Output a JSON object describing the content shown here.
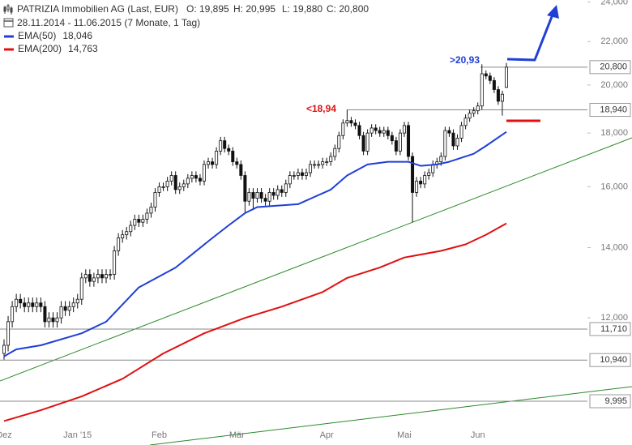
{
  "header": {
    "title": "PATRIZIA Immobilien AG (Last, EUR)",
    "open": "O: 19,895",
    "high": "H: 20,995",
    "low": "L: 19,880",
    "close": "C: 20,800",
    "period": "28.11.2014 - 11.06.2015 (7 Monate, 1 Tag)"
  },
  "chart_data": {
    "type": "candlestick",
    "log": true,
    "categories": [
      "Dez",
      null,
      null,
      null,
      null,
      null,
      null,
      null,
      null,
      null,
      null,
      null,
      null,
      null,
      null,
      null,
      null,
      null,
      "Jan '15",
      null,
      null,
      null,
      null,
      null,
      null,
      null,
      null,
      null,
      null,
      null,
      null,
      null,
      null,
      null,
      null,
      null,
      null,
      null,
      "Feb",
      null,
      null,
      null,
      null,
      null,
      null,
      null,
      null,
      null,
      null,
      null,
      null,
      null,
      null,
      null,
      null,
      null,
      null,
      "Mär",
      null,
      null,
      null,
      null,
      null,
      null,
      null,
      null,
      null,
      null,
      null,
      null,
      null,
      null,
      null,
      null,
      null,
      null,
      null,
      null,
      null,
      "Apr",
      null,
      null,
      null,
      null,
      null,
      null,
      null,
      null,
      null,
      null,
      null,
      null,
      null,
      null,
      null,
      null,
      null,
      null,
      "Mai",
      null,
      null,
      null,
      null,
      null,
      null,
      null,
      null,
      null,
      null,
      null,
      null,
      null,
      null,
      null,
      null,
      null,
      "Jun",
      null,
      null,
      null,
      null,
      null,
      null,
      null
    ],
    "open": [
      11.1,
      11.3,
      11.9,
      12.3,
      12.5,
      12.4,
      12.3,
      12.4,
      12.3,
      12.4,
      12.3,
      11.9,
      12.0,
      11.9,
      12.0,
      12.3,
      12.2,
      12.3,
      12.4,
      12.5,
      13.1,
      13.2,
      13.0,
      13.1,
      13.2,
      13.1,
      13.2,
      13.2,
      13.9,
      14.3,
      14.4,
      14.5,
      14.7,
      14.9,
      14.8,
      14.9,
      15.1,
      15.3,
      15.8,
      16.0,
      16.0,
      16.2,
      16.4,
      15.9,
      16.0,
      16.1,
      16.3,
      16.4,
      16.3,
      16.2,
      16.8,
      16.9,
      16.8,
      17.3,
      17.7,
      17.4,
      17.3,
      16.9,
      16.8,
      16.4,
      15.5,
      15.8,
      15.6,
      15.8,
      15.6,
      15.5,
      15.8,
      15.7,
      15.9,
      15.8,
      16.1,
      16.4,
      16.4,
      16.5,
      16.4,
      16.5,
      16.8,
      16.8,
      16.8,
      16.9,
      16.9,
      17.1,
      17.4,
      17.9,
      18.4,
      18.5,
      18.4,
      18.3,
      17.9,
      17.3,
      18.0,
      18.2,
      18.1,
      18.0,
      18.1,
      17.9,
      17.7,
      17.3,
      18.0,
      18.3,
      17.1,
      15.8,
      16.2,
      16.1,
      16.4,
      16.5,
      16.8,
      16.9,
      17.1,
      18.1,
      18.0,
      17.5,
      17.8,
      18.3,
      18.6,
      18.8,
      18.9,
      19.1,
      20.5,
      20.4,
      20.2,
      19.8,
      19.3,
      19.895
    ],
    "high": [
      11.45,
      12.05,
      12.45,
      12.65,
      12.65,
      12.55,
      12.55,
      12.55,
      12.55,
      12.55,
      12.45,
      12.15,
      12.15,
      12.15,
      12.45,
      12.45,
      12.45,
      12.55,
      12.65,
      13.25,
      13.35,
      13.35,
      13.25,
      13.35,
      13.35,
      13.35,
      13.35,
      14.05,
      14.45,
      14.55,
      14.65,
      14.85,
      15.05,
      15.05,
      15.05,
      15.25,
      15.45,
      15.95,
      16.15,
      16.15,
      16.35,
      16.55,
      16.55,
      16.15,
      16.25,
      16.45,
      16.55,
      16.55,
      16.45,
      16.95,
      17.05,
      17.05,
      17.45,
      17.85,
      17.85,
      17.55,
      17.45,
      17.05,
      16.95,
      16.55,
      15.95,
      15.95,
      15.95,
      15.95,
      15.75,
      15.95,
      15.95,
      16.05,
      16.05,
      16.25,
      16.55,
      16.55,
      16.65,
      16.65,
      16.65,
      16.95,
      16.95,
      16.95,
      17.05,
      17.05,
      17.25,
      17.55,
      18.05,
      18.55,
      18.94,
      18.65,
      18.55,
      18.45,
      18.05,
      18.15,
      18.35,
      18.35,
      18.25,
      18.25,
      18.25,
      18.05,
      17.85,
      18.15,
      18.45,
      18.45,
      17.25,
      16.35,
      16.35,
      16.55,
      16.65,
      16.95,
      17.05,
      17.25,
      18.25,
      18.25,
      18.15,
      17.95,
      18.45,
      18.75,
      18.95,
      19.05,
      19.25,
      20.93,
      20.65,
      20.55,
      20.35,
      19.95,
      19.75,
      20.995
    ],
    "low": [
      10.95,
      11.15,
      11.75,
      12.15,
      12.25,
      12.15,
      12.15,
      12.15,
      12.15,
      12.15,
      11.75,
      11.75,
      11.75,
      11.75,
      11.85,
      12.05,
      12.05,
      12.15,
      12.25,
      12.35,
      12.95,
      12.85,
      12.85,
      12.95,
      12.95,
      12.95,
      13.05,
      13.05,
      13.75,
      14.15,
      14.25,
      14.35,
      14.55,
      14.65,
      14.65,
      14.75,
      14.95,
      15.15,
      15.65,
      15.85,
      15.85,
      16.05,
      15.75,
      15.75,
      15.85,
      15.95,
      16.15,
      16.15,
      16.05,
      16.05,
      16.65,
      16.65,
      16.65,
      17.15,
      17.25,
      17.15,
      16.75,
      16.65,
      16.25,
      15.1,
      15.35,
      15.2,
      15.45,
      15.45,
      15.35,
      15.35,
      15.55,
      15.55,
      15.65,
      15.65,
      15.95,
      16.25,
      16.25,
      16.25,
      16.25,
      16.35,
      16.65,
      16.65,
      16.65,
      16.75,
      16.75,
      16.95,
      17.25,
      17.75,
      18.25,
      18.25,
      18.15,
      17.75,
      17.15,
      17.15,
      17.85,
      17.95,
      17.85,
      17.85,
      17.75,
      17.55,
      17.15,
      17.15,
      17.85,
      16.95,
      14.8,
      15.65,
      15.95,
      15.95,
      16.25,
      16.35,
      16.65,
      16.75,
      16.95,
      17.85,
      17.35,
      17.35,
      17.65,
      18.15,
      18.45,
      18.65,
      18.75,
      18.95,
      20.25,
      20.05,
      19.65,
      19.15,
      18.7,
      19.88
    ],
    "close": [
      11.3,
      11.9,
      12.3,
      12.5,
      12.4,
      12.3,
      12.4,
      12.3,
      12.4,
      12.3,
      11.9,
      12.0,
      11.9,
      12.0,
      12.3,
      12.2,
      12.3,
      12.4,
      12.5,
      13.1,
      13.2,
      13.0,
      13.1,
      13.2,
      13.1,
      13.2,
      13.2,
      13.9,
      14.3,
      14.4,
      14.5,
      14.7,
      14.9,
      14.8,
      14.9,
      15.1,
      15.3,
      15.8,
      16.0,
      16.0,
      16.2,
      16.4,
      15.9,
      16.0,
      16.1,
      16.3,
      16.4,
      16.3,
      16.2,
      16.8,
      16.9,
      16.8,
      17.3,
      17.7,
      17.4,
      17.3,
      16.9,
      16.8,
      16.4,
      15.5,
      15.8,
      15.6,
      15.8,
      15.6,
      15.5,
      15.8,
      15.7,
      15.9,
      15.8,
      16.1,
      16.4,
      16.4,
      16.5,
      16.4,
      16.5,
      16.8,
      16.8,
      16.8,
      16.9,
      16.9,
      17.1,
      17.4,
      17.9,
      18.4,
      18.5,
      18.4,
      18.3,
      17.9,
      17.3,
      18.0,
      18.2,
      18.1,
      18.0,
      18.1,
      17.9,
      17.7,
      17.3,
      18.0,
      18.3,
      17.1,
      15.8,
      16.2,
      16.1,
      16.4,
      16.5,
      16.8,
      16.9,
      17.1,
      18.1,
      18.0,
      17.5,
      17.8,
      18.3,
      18.6,
      18.8,
      18.9,
      19.1,
      20.5,
      20.4,
      20.2,
      19.8,
      19.3,
      19.6,
      20.8
    ],
    "candle_color": "#111111",
    "series": [
      {
        "name": "EMA(50)",
        "color": "#1f3fd6",
        "last_label": "18,046",
        "x": [
          0,
          3,
          9,
          19,
          25,
          33,
          42,
          51,
          55,
          59,
          62,
          72,
          80,
          84,
          89,
          94,
          99,
          102,
          106,
          109,
          115,
          118,
          123
        ],
        "values": [
          11.03,
          11.2,
          11.3,
          11.6,
          11.9,
          12.83,
          13.4,
          14.3,
          14.7,
          15.1,
          15.3,
          15.4,
          15.9,
          16.4,
          16.8,
          16.9,
          16.9,
          16.75,
          16.8,
          16.9,
          17.2,
          17.5,
          18.046
        ]
      },
      {
        "name": "EMA(200)",
        "color": "#e01010",
        "last_label": "14,763",
        "x": [
          0,
          9,
          19,
          29,
          39,
          49,
          59,
          68,
          78,
          84,
          92,
          98,
          107,
          113,
          118,
          123
        ],
        "values": [
          9.57,
          9.8,
          10.1,
          10.5,
          11.1,
          11.6,
          12.0,
          12.3,
          12.7,
          13.1,
          13.4,
          13.7,
          13.9,
          14.1,
          14.4,
          14.763
        ]
      }
    ],
    "levels": [
      {
        "value": 20.8,
        "label": "20,800"
      },
      {
        "value": 18.94,
        "label": "18,940"
      },
      {
        "value": 11.71,
        "label": "11,710"
      },
      {
        "value": 10.94,
        "label": "10,940"
      },
      {
        "value": 9.995,
        "label": "9,995"
      }
    ],
    "annotations": [
      ">20,93",
      "<18,94"
    ],
    "ylim": [
      9.08,
      24.1
    ],
    "yticks": [
      {
        "value": 12,
        "label": "12,000"
      },
      {
        "value": 14,
        "label": "14,000"
      },
      {
        "value": 16,
        "label": "16,000"
      },
      {
        "value": 18,
        "label": "18,000"
      },
      {
        "value": 20,
        "label": "20,000"
      },
      {
        "value": 22,
        "label": "22,000"
      },
      {
        "value": 24,
        "label": "24,000"
      }
    ]
  }
}
